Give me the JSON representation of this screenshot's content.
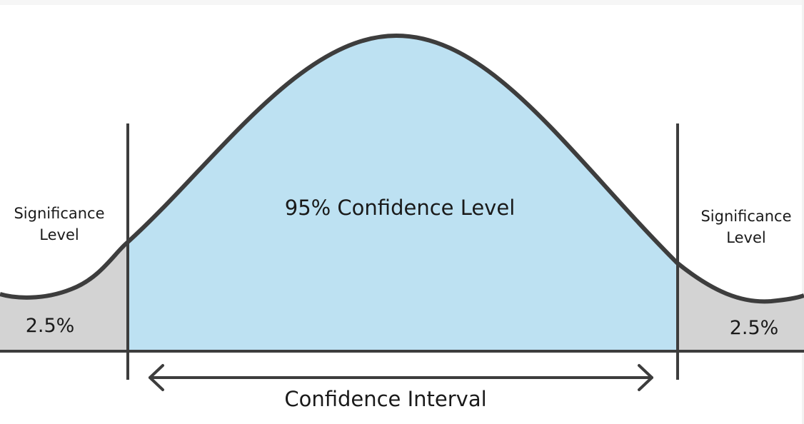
{
  "diagram": {
    "center_label": "95% Confidence Level",
    "left_tail": {
      "label_line1": "Significance",
      "label_line2": "Level",
      "percent": "2.5%"
    },
    "right_tail": {
      "label_line1": "Significance",
      "label_line2": "Level",
      "percent": "2.5%"
    },
    "interval_label": "Confidence Interval",
    "colors": {
      "confidence_fill": "#bde1f2",
      "tail_fill": "#d3d3d3",
      "stroke": "#3d3d3d"
    }
  }
}
